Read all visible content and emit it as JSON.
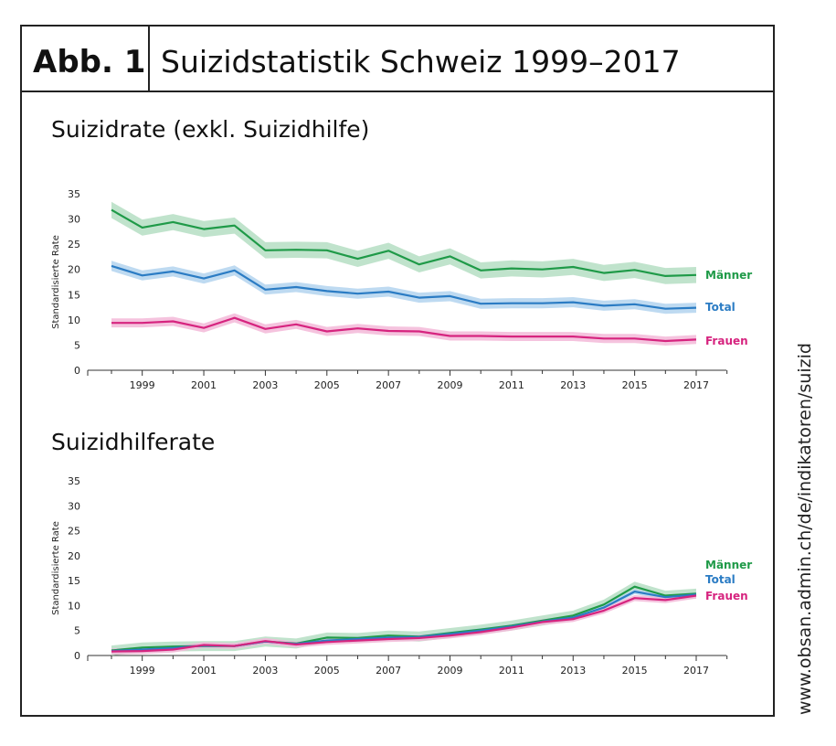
{
  "figure": {
    "label": "Abb. 1",
    "title": "Suizidstatistik Schweiz 1999–2017",
    "source": "www.obsan.admin.ch/de/indikatoren/suizid"
  },
  "colors": {
    "maenner": "#1f9a48",
    "total": "#2b7cc4",
    "frauen": "#d6247f",
    "maenner_band": "#b5dec3",
    "total_band": "#b3d3ef",
    "frauen_band": "#f3b9d8"
  },
  "chart_data": [
    {
      "type": "line",
      "title": "Suizidrate (exkl. Suizidhilfe)",
      "xlabel": "",
      "ylabel": "Standardisierte Rate",
      "ylim": [
        0,
        35
      ],
      "yticks": [
        "0",
        "5",
        "10",
        "15",
        "20",
        "25",
        "30",
        "35"
      ],
      "xticks": [
        "1999",
        "2001",
        "2003",
        "2005",
        "2007",
        "2009",
        "2011",
        "2013",
        "2015",
        "2017"
      ],
      "grid": false,
      "legend": "inline-right",
      "x": [
        1998,
        1999,
        2000,
        2001,
        2002,
        2003,
        2004,
        2005,
        2006,
        2007,
        2008,
        2009,
        2010,
        2011,
        2012,
        2013,
        2014,
        2015,
        2016,
        2017
      ],
      "series": [
        {
          "name": "Männer",
          "color_key": "maenner",
          "band": 1.6,
          "values": [
            31.8,
            28.3,
            29.4,
            28.0,
            28.7,
            23.8,
            23.9,
            23.8,
            22.1,
            23.7,
            21.0,
            22.6,
            19.8,
            20.2,
            20.0,
            20.5,
            19.3,
            19.9,
            18.7,
            18.9
          ]
        },
        {
          "name": "Total",
          "color_key": "total",
          "band": 1.0,
          "values": [
            20.7,
            18.8,
            19.6,
            18.2,
            19.8,
            16.0,
            16.5,
            15.7,
            15.2,
            15.6,
            14.4,
            14.7,
            13.2,
            13.3,
            13.3,
            13.5,
            12.8,
            13.1,
            12.2,
            12.4
          ]
        },
        {
          "name": "Frauen",
          "color_key": "frauen",
          "band": 0.9,
          "values": [
            9.4,
            9.4,
            9.7,
            8.4,
            10.4,
            8.2,
            9.1,
            7.7,
            8.3,
            7.8,
            7.7,
            6.8,
            6.8,
            6.7,
            6.7,
            6.7,
            6.3,
            6.3,
            5.8,
            6.1
          ]
        }
      ]
    },
    {
      "type": "line",
      "title": "Suizidhilferate",
      "xlabel": "",
      "ylabel": "Standardisierte Rate",
      "ylim": [
        0,
        35
      ],
      "yticks": [
        "0",
        "5",
        "10",
        "15",
        "20",
        "25",
        "30",
        "35"
      ],
      "xticks": [
        "1999",
        "2001",
        "2003",
        "2005",
        "2007",
        "2009",
        "2011",
        "2013",
        "2015",
        "2017"
      ],
      "grid": false,
      "legend": "inline-right",
      "x": [
        1998,
        1999,
        2000,
        2001,
        2002,
        2003,
        2004,
        2005,
        2006,
        2007,
        2008,
        2009,
        2010,
        2011,
        2012,
        2013,
        2014,
        2015,
        2016,
        2017
      ],
      "series": [
        {
          "name": "Männer",
          "color_key": "maenner",
          "band": 1.0,
          "values": [
            1.0,
            1.6,
            1.8,
            1.9,
            1.9,
            2.8,
            2.4,
            3.6,
            3.5,
            4.0,
            3.8,
            4.5,
            5.2,
            6.0,
            7.0,
            8.0,
            10.2,
            13.8,
            12.0,
            12.4
          ]
        },
        {
          "name": "Total",
          "color_key": "total",
          "band": 0.5,
          "values": [
            0.9,
            1.2,
            1.5,
            2.0,
            1.9,
            2.8,
            2.3,
            3.0,
            3.3,
            3.6,
            3.7,
            4.3,
            5.0,
            5.8,
            6.8,
            7.6,
            9.6,
            12.8,
            11.7,
            12.2
          ]
        },
        {
          "name": "Frauen",
          "color_key": "frauen",
          "band": 0.6,
          "values": [
            0.8,
            0.9,
            1.2,
            2.1,
            1.9,
            2.9,
            2.2,
            2.7,
            3.0,
            3.3,
            3.5,
            4.0,
            4.7,
            5.6,
            6.7,
            7.3,
            9.0,
            11.5,
            11.1,
            12.0
          ]
        }
      ]
    }
  ]
}
